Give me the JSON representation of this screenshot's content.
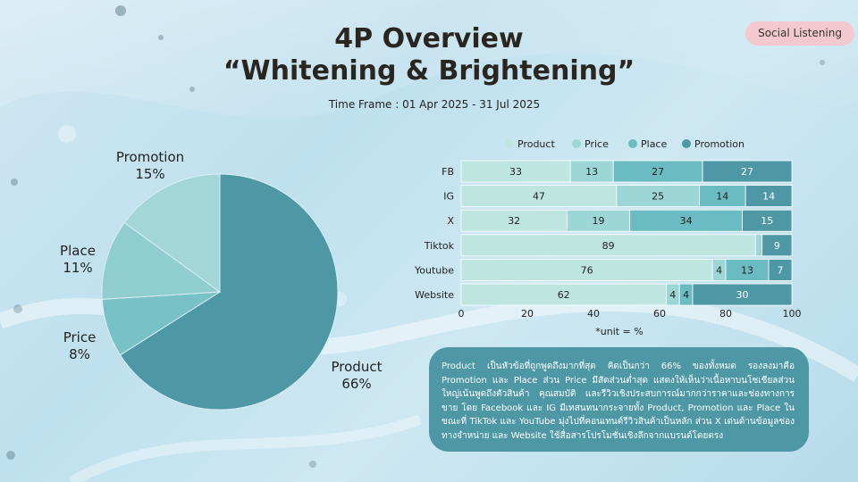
{
  "badge": "Social Listening",
  "title_line1": "4P Overview",
  "title_line2": "“Whitening & Brightening”",
  "timeframe": "Time Frame : 01 Apr 2025 - 31 Jul 2025",
  "colors": {
    "product_pie": "#4e98a6",
    "price_pie": "#78c1c6",
    "place_pie": "#8fcdd0",
    "promotion_pie": "#a3d6d8",
    "product_bar": "#bfe5e1",
    "price_bar": "#9dd6d6",
    "place_bar": "#6bbbc3",
    "promotion_bar": "#4e98a6"
  },
  "chart_data": [
    {
      "type": "pie",
      "title": "",
      "slices": [
        {
          "label": "Product",
          "pct_label": "66%",
          "value": 66
        },
        {
          "label": "Price",
          "pct_label": "8%",
          "value": 8
        },
        {
          "label": "Place",
          "pct_label": "11%",
          "value": 11
        },
        {
          "label": "Promotion",
          "pct_label": "15%",
          "value": 15
        }
      ]
    },
    {
      "type": "bar",
      "orientation": "horizontal",
      "stacked": true,
      "categories": [
        "FB",
        "IG",
        "X",
        "Tiktok",
        "Youtube",
        "Website"
      ],
      "series": [
        {
          "name": "Product",
          "values": [
            33,
            47,
            32,
            89,
            76,
            62
          ]
        },
        {
          "name": "Price",
          "values": [
            13,
            25,
            19,
            2,
            4,
            4
          ]
        },
        {
          "name": "Place",
          "values": [
            27,
            14,
            34,
            0,
            13,
            4
          ]
        },
        {
          "name": "Promotion",
          "values": [
            27,
            14,
            15,
            9,
            7,
            30
          ]
        }
      ],
      "labels": [
        [
          "33",
          "13",
          "27",
          "27"
        ],
        [
          "47",
          "25",
          "14",
          "14"
        ],
        [
          "32",
          "19",
          "34",
          "15"
        ],
        [
          "89",
          "",
          "",
          "9"
        ],
        [
          "76",
          "4",
          "13",
          "7"
        ],
        [
          "62",
          "4",
          "4",
          "30"
        ]
      ],
      "xlim": [
        0,
        100
      ],
      "xticks": [
        "0",
        "20",
        "40",
        "60",
        "80",
        "100"
      ],
      "xlabel": "*unit = %",
      "legend_position": "top"
    }
  ],
  "note_text": "Product เป็นหัวข้อที่ถูกพูดถึงมากที่สุด คิดเป็นกว่า 66% ของทั้งหมด รองลงมาคือ Promotion และ Place ส่วน Price มีสัดส่วนต่ำสุด แสดงให้เห็นว่าเนื้อหาบนโซเชียลส่วนใหญ่เน้นพูดถึงตัวสินค้า คุณสมบัติ และรีวิวเชิงประสบการณ์มากกว่าราคาและช่องทางการขาย โดย Facebook และ IG มีเทสนทนากระจายทั้ง Product, Promotion และ Place ในขณะที่ TikTok และ YouTube มุ่งไปที่คอนเทนต์รีวิวสินค้าเป็นหลัก ส่วน X เด่นด้านข้อมูลช่องทางจำหน่าย และ Website ใช้สื่อสารโปรโมชั่นเชิงลึกจากแบรนด์โดยตรง"
}
